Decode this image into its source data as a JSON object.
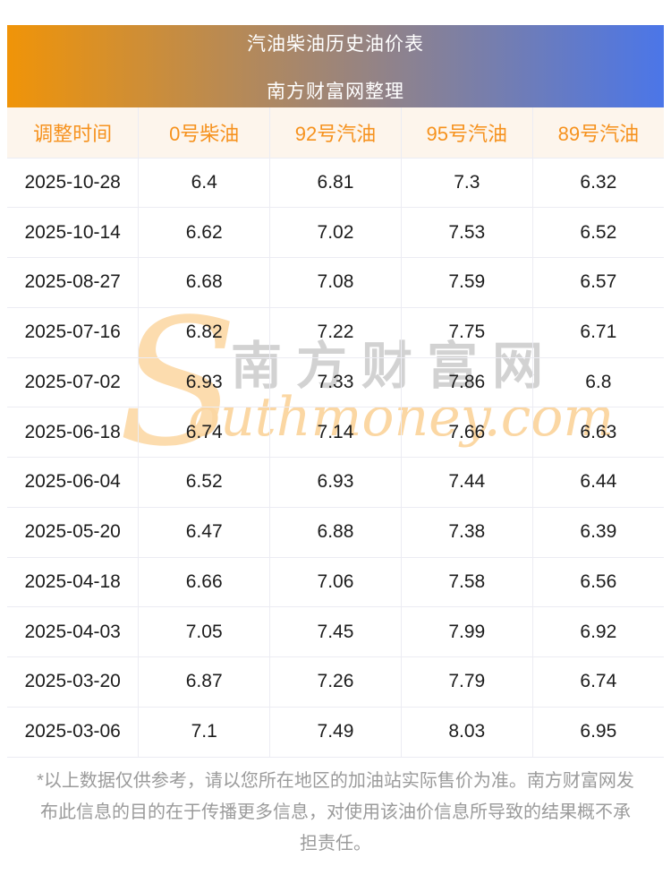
{
  "banner": {
    "title": "汽油柴油历史油价表",
    "subtitle": "南方财富网整理",
    "gradient_left_color": "#f09408",
    "gradient_right_color": "#4b76e8"
  },
  "table": {
    "columns": [
      "调整时间",
      "0号柴油",
      "92号汽油",
      "95号汽油",
      "89号汽油"
    ],
    "rows": [
      [
        "2025-10-28",
        "6.4",
        "6.81",
        "7.3",
        "6.32"
      ],
      [
        "2025-10-14",
        "6.62",
        "7.02",
        "7.53",
        "6.52"
      ],
      [
        "2025-08-27",
        "6.68",
        "7.08",
        "7.59",
        "6.57"
      ],
      [
        "2025-07-16",
        "6.82",
        "7.22",
        "7.75",
        "6.71"
      ],
      [
        "2025-07-02",
        "6.93",
        "7.33",
        "7.86",
        "6.8"
      ],
      [
        "2025-06-18",
        "6.74",
        "7.14",
        "7.66",
        "6.63"
      ],
      [
        "2025-06-04",
        "6.52",
        "6.93",
        "7.44",
        "6.44"
      ],
      [
        "2025-05-20",
        "6.47",
        "6.88",
        "7.38",
        "6.39"
      ],
      [
        "2025-04-18",
        "6.66",
        "7.06",
        "7.58",
        "6.56"
      ],
      [
        "2025-04-03",
        "7.05",
        "7.45",
        "7.99",
        "6.92"
      ],
      [
        "2025-03-20",
        "6.87",
        "7.26",
        "7.79",
        "6.74"
      ],
      [
        "2025-03-06",
        "7.1",
        "7.49",
        "8.03",
        "6.95"
      ]
    ],
    "header_bg_color": "#fdf5ec",
    "header_text_color": "#f6921e",
    "border_color": "#ececf3"
  },
  "chart_data": {
    "type": "table",
    "title": "汽油柴油历史油价表",
    "categories": [
      "2025-10-28",
      "2025-10-14",
      "2025-08-27",
      "2025-07-16",
      "2025-07-02",
      "2025-06-18",
      "2025-06-04",
      "2025-05-20",
      "2025-04-18",
      "2025-04-03",
      "2025-03-20",
      "2025-03-06"
    ],
    "series": [
      {
        "name": "0号柴油",
        "values": [
          6.4,
          6.62,
          6.68,
          6.82,
          6.93,
          6.74,
          6.52,
          6.47,
          6.66,
          7.05,
          6.87,
          7.1
        ]
      },
      {
        "name": "92号汽油",
        "values": [
          6.81,
          7.02,
          7.08,
          7.22,
          7.33,
          7.14,
          6.93,
          6.88,
          7.06,
          7.45,
          7.26,
          7.49
        ]
      },
      {
        "name": "95号汽油",
        "values": [
          7.3,
          7.53,
          7.59,
          7.75,
          7.86,
          7.66,
          7.44,
          7.38,
          7.58,
          7.99,
          7.79,
          8.03
        ]
      },
      {
        "name": "89号汽油",
        "values": [
          6.32,
          6.52,
          6.57,
          6.71,
          6.8,
          6.63,
          6.44,
          6.39,
          6.56,
          6.92,
          6.74,
          6.95
        ]
      }
    ],
    "xlabel": "调整时间",
    "ylabel": ""
  },
  "watermark": {
    "initial": "S",
    "cn_text": "南方财富网",
    "en_text": "outhmoney.com",
    "peach_color": "#fcdcae",
    "gray_color": "#d2d2d2"
  },
  "disclaimer": "*以上数据仅供参考，请以您所在地区的加油站实际售价为准。南方财富网发布此信息的目的在于传播更多信息，对使用该油价信息所导致的结果概不承担责任。"
}
